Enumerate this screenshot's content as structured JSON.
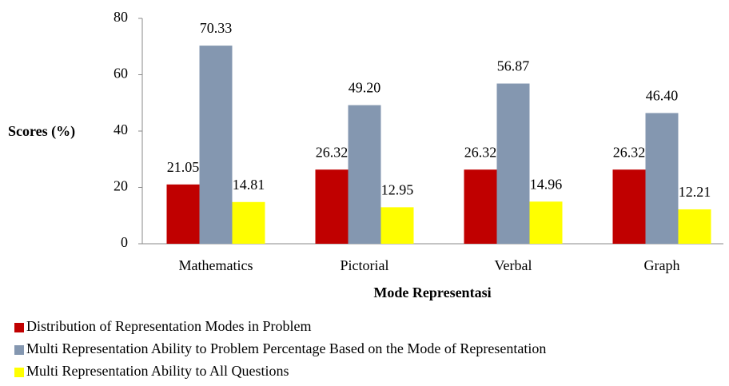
{
  "chart_data": {
    "type": "bar",
    "y_label": "Scores (%)",
    "x_label": "Mode Representasi",
    "categories": [
      "Mathematics",
      "Pictorial",
      "Verbal",
      "Graph"
    ],
    "series": [
      {
        "name": "Distribution of Representation Modes in Problem",
        "color": "#c00000",
        "values": [
          21.05,
          26.32,
          26.32,
          26.32
        ],
        "value_labels": [
          "21.05",
          "26.32",
          "26.32",
          "26.32"
        ]
      },
      {
        "name": "Multi Representation Ability to Problem Percentage Based on the Mode of Representation",
        "color": "#8497b0",
        "values": [
          70.33,
          49.2,
          56.87,
          46.4
        ],
        "value_labels": [
          "70.33",
          "49.20",
          "56.87",
          "46.40"
        ]
      },
      {
        "name": "Multi Representation Ability to All Questions",
        "color": "#ffff00",
        "values": [
          14.81,
          12.95,
          14.96,
          12.21
        ],
        "value_labels": [
          "14.81",
          "12.95",
          "14.96",
          "12.21"
        ]
      }
    ],
    "ylim": [
      0,
      80
    ],
    "yticks": [
      0,
      20,
      40,
      60,
      80
    ],
    "grid": false,
    "legend": "bottom"
  }
}
